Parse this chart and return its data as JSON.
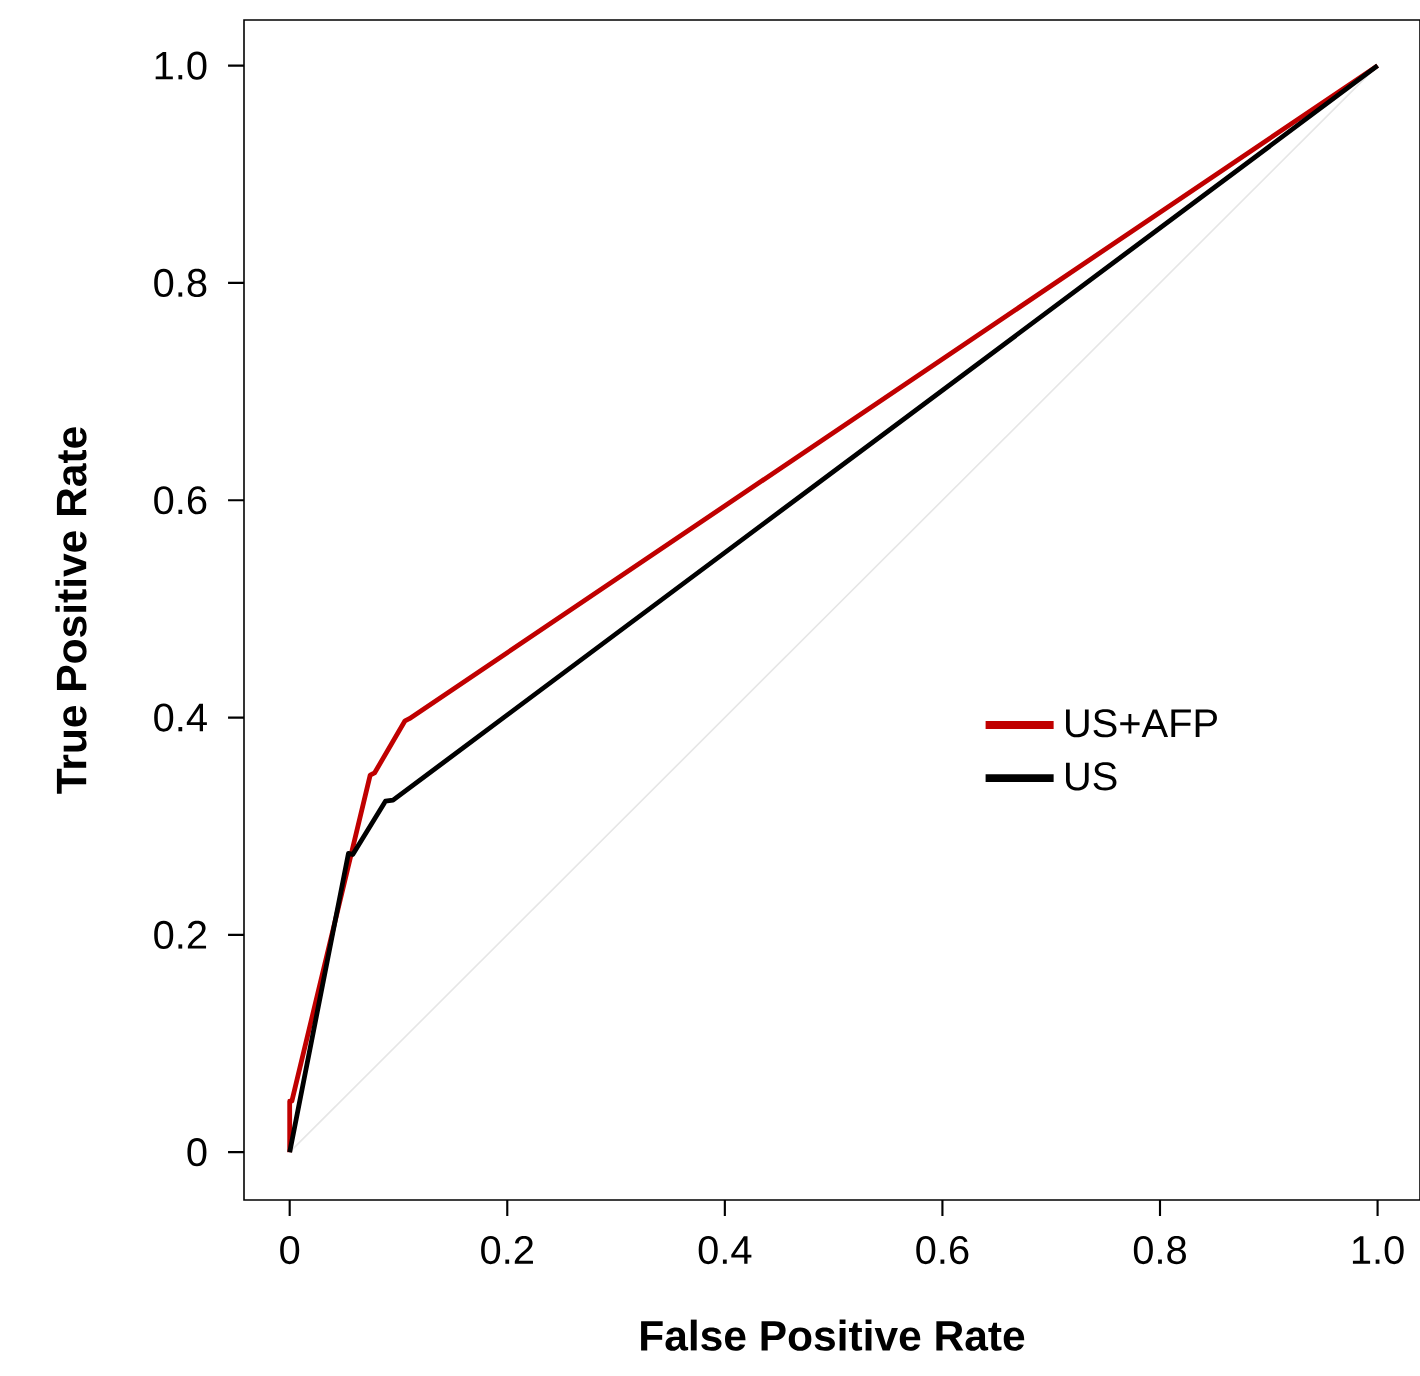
{
  "chart_data": {
    "type": "line",
    "xlabel": "False Positive Rate",
    "ylabel": "True Positive Rate",
    "xlim": [
      -0.042,
      1.039
    ],
    "ylim": [
      -0.044,
      1.042
    ],
    "xticks": [
      0,
      0.2,
      0.4,
      0.6,
      0.8,
      {
        "value": 1,
        "label": "1.0"
      }
    ],
    "yticks": [
      0,
      0.2,
      0.4,
      0.6,
      0.8,
      {
        "value": 1,
        "label": "1.0"
      }
    ],
    "legend": "right",
    "grid": false,
    "series": [
      {
        "name": "US+AFP",
        "color": "#c00000",
        "x": [
          0,
          0,
          0.002,
          0.074,
          0.078,
          0.106,
          0.11,
          1
        ],
        "values": [
          0,
          0.047,
          0.047,
          0.347,
          0.349,
          0.397,
          0.399,
          1
        ]
      },
      {
        "name": "US",
        "color": "#000000",
        "x": [
          0,
          0.054,
          0.058,
          0.088,
          0.095,
          1
        ],
        "values": [
          0,
          0.275,
          0.274,
          0.323,
          0.324,
          1
        ]
      },
      {
        "color": "#e6e6e6",
        "x": [
          0,
          1
        ],
        "values": [
          0,
          1
        ]
      }
    ]
  }
}
